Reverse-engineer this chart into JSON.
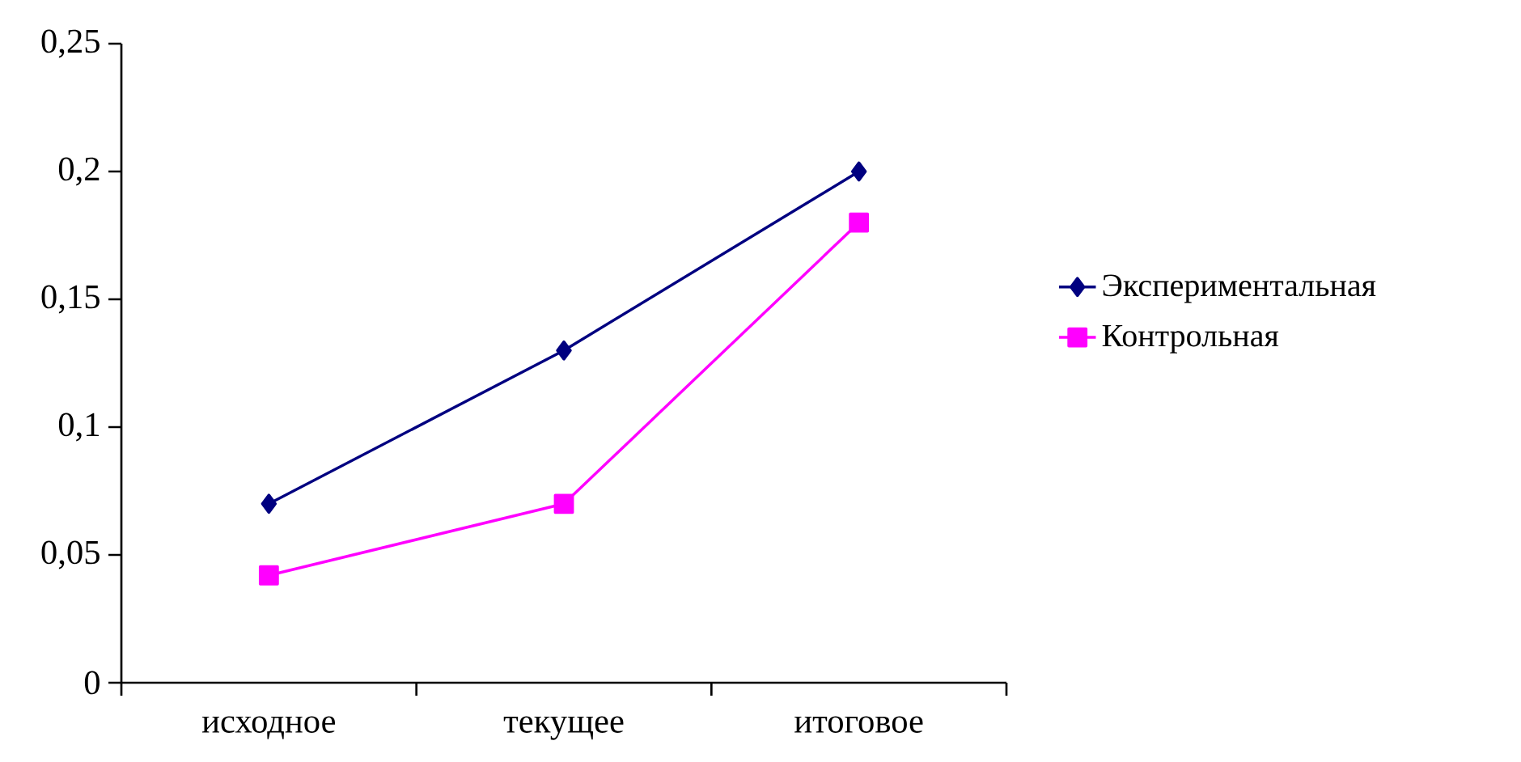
{
  "chart_data": {
    "type": "line",
    "categories": [
      "исходное",
      "текущее",
      "итоговое"
    ],
    "series": [
      {
        "name": "Экспериментальная",
        "color": "#000080",
        "marker": "diamond",
        "values": [
          0.07,
          0.13,
          0.2
        ]
      },
      {
        "name": "Контрольная",
        "color": "#ff00ff",
        "marker": "square",
        "values": [
          0.042,
          0.07,
          0.18
        ]
      }
    ],
    "ylim": [
      0,
      0.25
    ],
    "yticks": [
      0,
      {
        "value": 0.05,
        "label": "0,05"
      },
      {
        "value": 0.1,
        "label": "0,1"
      },
      {
        "value": 0.15,
        "label": "0,15"
      },
      {
        "value": 0.2,
        "label": "0,2"
      },
      {
        "value": 0.25,
        "label": "0,25"
      }
    ],
    "grid": false,
    "legend": "right",
    "line_style": "solid"
  }
}
